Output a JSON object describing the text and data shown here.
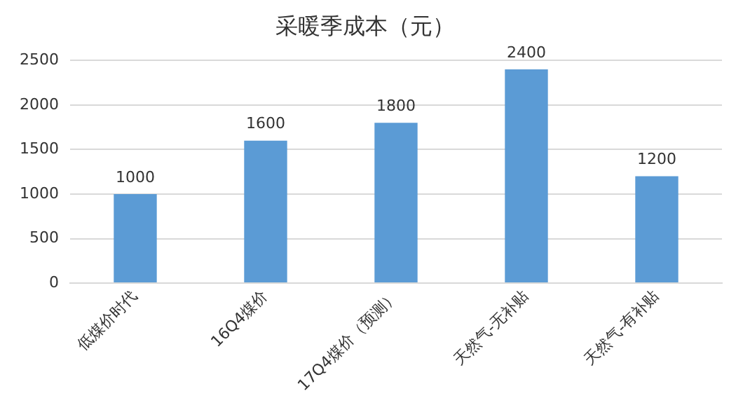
{
  "chart_data": {
    "type": "bar",
    "title": "采暖季成本（元）",
    "categories": [
      "低煤价时代",
      "16Q4煤价",
      "17Q4煤价（预测）",
      "天然气-无补贴",
      "天然气-有补贴"
    ],
    "values": [
      1000,
      1600,
      1800,
      2400,
      1200
    ],
    "color": "#5b9bd5",
    "ylim": [
      0,
      2500
    ],
    "yticks": [
      0,
      500,
      1000,
      1500,
      2000,
      2500
    ],
    "grid": "y",
    "data_labels": true
  }
}
